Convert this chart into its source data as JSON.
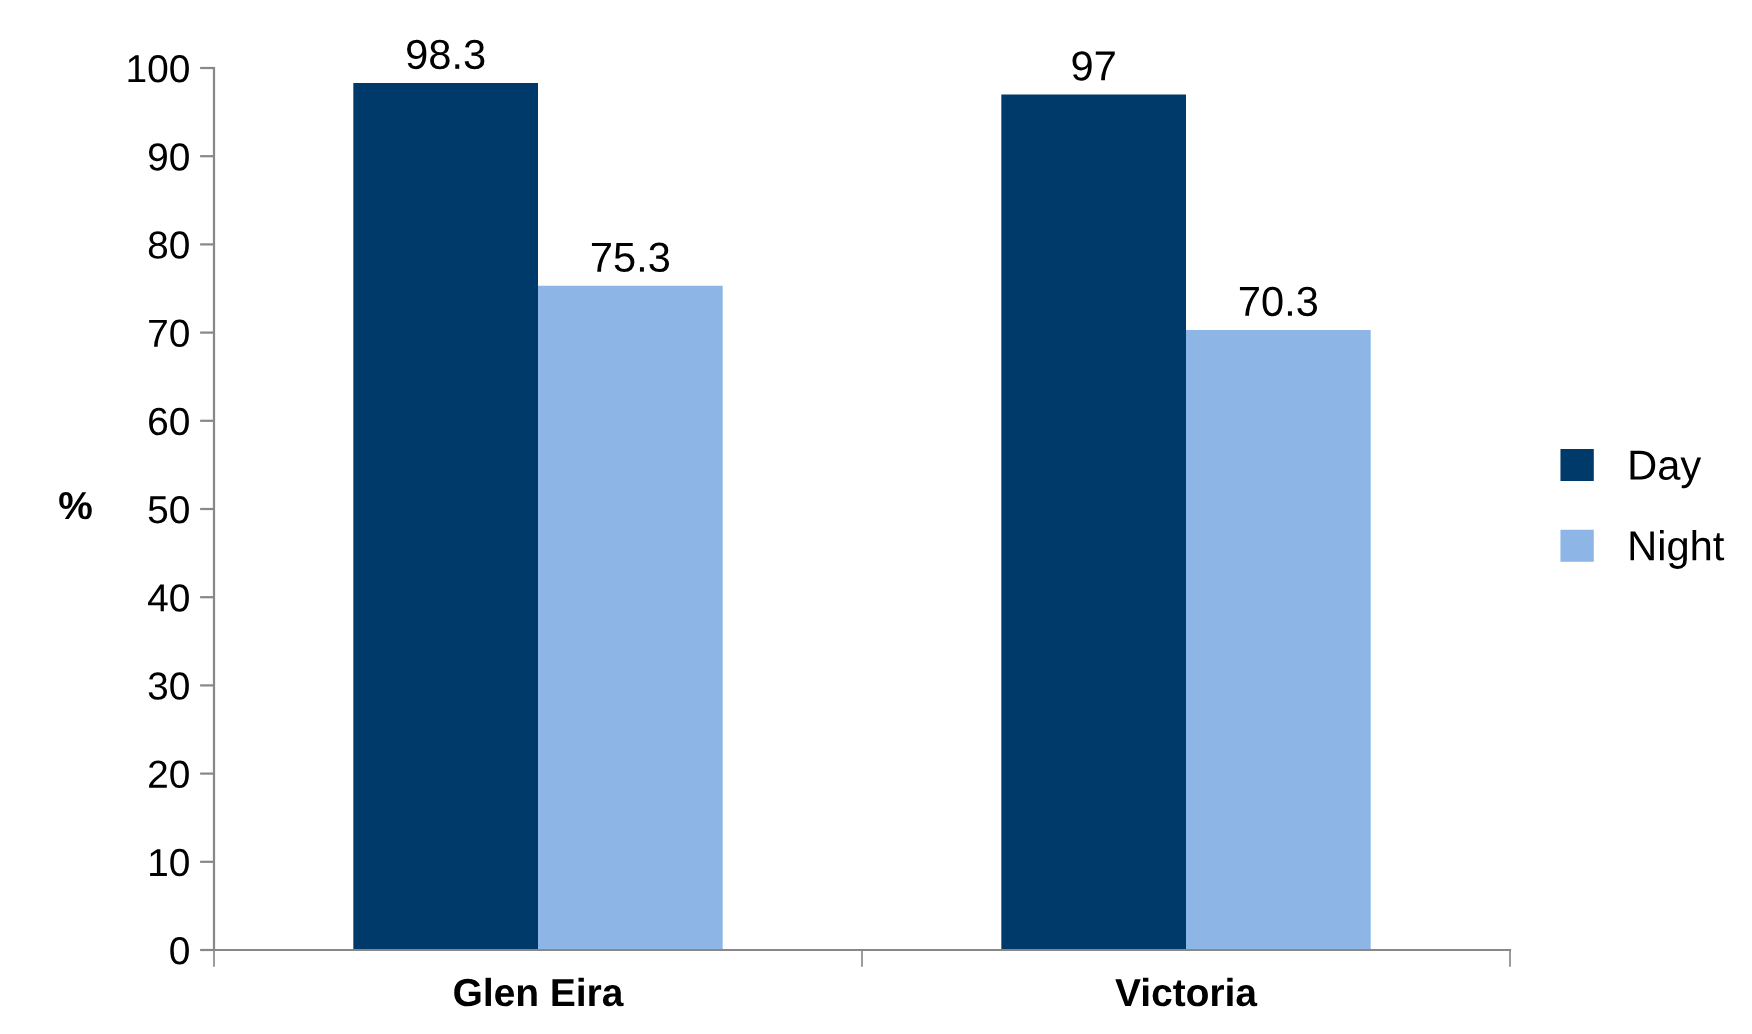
{
  "chart_data": {
    "type": "bar",
    "ylabel": "%",
    "categories": [
      "Glen Eira",
      "Victoria"
    ],
    "series": [
      {
        "name": "Day",
        "color": "#003a6b",
        "values": [
          98.3,
          97
        ]
      },
      {
        "name": "Night",
        "color": "#8db6e6",
        "values": [
          75.3,
          70.3
        ]
      }
    ],
    "ylim": [
      0,
      100
    ],
    "yticks": [
      0,
      10,
      20,
      30,
      40,
      50,
      60,
      70,
      80,
      90,
      100
    ],
    "data_labels": true,
    "grid": false,
    "legend": "right"
  }
}
